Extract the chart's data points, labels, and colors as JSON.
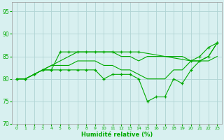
{
  "xlabel": "Humidité relative (%)",
  "background_color": "#d8f0f0",
  "grid_color": "#b0d4d4",
  "line_color": "#00aa00",
  "xlim": [
    -0.5,
    23.5
  ],
  "ylim": [
    70,
    97
  ],
  "yticks": [
    70,
    75,
    80,
    85,
    90,
    95
  ],
  "xticks": [
    0,
    1,
    2,
    3,
    4,
    5,
    6,
    7,
    8,
    9,
    10,
    11,
    12,
    13,
    14,
    15,
    16,
    17,
    18,
    19,
    20,
    21,
    22,
    23
  ],
  "lines": [
    {
      "x": [
        0,
        1,
        2,
        3,
        4,
        5,
        6,
        7,
        8,
        9,
        10,
        11,
        12,
        13,
        14,
        20,
        21,
        22,
        23
      ],
      "y": [
        80,
        80,
        81,
        82,
        82,
        86,
        86,
        86,
        86,
        86,
        86,
        86,
        86,
        86,
        86,
        84,
        85,
        87,
        88
      ],
      "marker": true
    },
    {
      "x": [
        0,
        1,
        2,
        3,
        4,
        5,
        6,
        7,
        8,
        9,
        10,
        11,
        12,
        13,
        14,
        15,
        16,
        17,
        18,
        19,
        20,
        21,
        22,
        23
      ],
      "y": [
        80,
        80,
        81,
        82,
        83,
        84,
        85,
        86,
        86,
        86,
        86,
        86,
        85,
        85,
        84,
        85,
        85,
        85,
        85,
        85,
        84,
        84,
        85,
        88
      ],
      "marker": false
    },
    {
      "x": [
        0,
        1,
        2,
        3,
        4,
        5,
        6,
        7,
        8,
        9,
        10,
        11,
        12,
        13,
        14,
        15,
        16,
        17,
        18,
        19,
        20,
        21,
        22,
        23
      ],
      "y": [
        80,
        80,
        81,
        82,
        83,
        83,
        83,
        84,
        84,
        84,
        83,
        83,
        82,
        82,
        81,
        80,
        80,
        80,
        82,
        82,
        84,
        84,
        84,
        85
      ],
      "marker": false
    },
    {
      "x": [
        0,
        1,
        2,
        3,
        4,
        5,
        6,
        7,
        8,
        9,
        10,
        11,
        12,
        13,
        14,
        15,
        16,
        17,
        18,
        19,
        20,
        21,
        22,
        23
      ],
      "y": [
        80,
        80,
        81,
        82,
        82,
        82,
        82,
        82,
        82,
        82,
        80,
        81,
        81,
        81,
        80,
        75,
        76,
        76,
        80,
        79,
        82,
        84,
        85,
        88
      ],
      "marker": true
    }
  ]
}
